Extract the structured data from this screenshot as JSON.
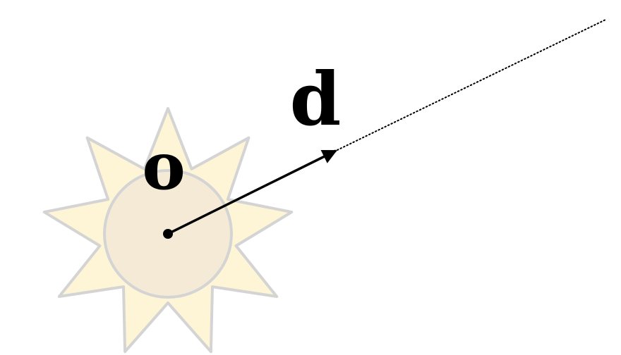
{
  "diagram": {
    "title": "",
    "origin_label": "o",
    "direction_label": "d"
  },
  "colors": {
    "background": "#ffffff",
    "sun_rays_fill": "#fdf5d6",
    "sun_core_fill": "#f5ead6",
    "sun_outline": "#d4d4d4",
    "vector": "#000000",
    "ray_dotted": "#000000"
  },
  "icons": {
    "light_source": "sun-icon",
    "origin_point": "point-dot",
    "direction": "arrow-vector"
  }
}
